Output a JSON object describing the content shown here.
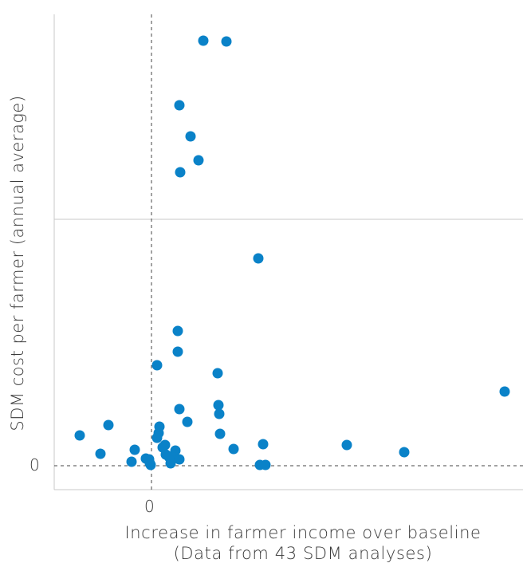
{
  "chart_data": {
    "type": "scatter",
    "title": "",
    "xlabel_lines": [
      "Increase in farmer income over baseline",
      "(Data from 43 SDM analyses)"
    ],
    "ylabel": "SDM cost per farmer (annual average)",
    "x_ticks": [
      {
        "value": 0,
        "label": "0"
      }
    ],
    "y_ticks": [
      {
        "value": 0,
        "label": "0"
      }
    ],
    "reference_lines": [
      "x = 0 (dashed)",
      "y = 0 (dashed)"
    ],
    "grid": "single horizontal gridline at upper half",
    "point_color": "#0a82c8",
    "points": [
      {
        "x": 65,
        "y": 533
      },
      {
        "x": 94,
        "y": 532
      },
      {
        "x": 35,
        "y": 452
      },
      {
        "x": 49,
        "y": 413
      },
      {
        "x": 59,
        "y": 383
      },
      {
        "x": 36,
        "y": 368
      },
      {
        "x": 134,
        "y": 260
      },
      {
        "x": 33,
        "y": 169
      },
      {
        "x": 33,
        "y": 143
      },
      {
        "x": 7,
        "y": 126
      },
      {
        "x": 83,
        "y": 116
      },
      {
        "x": 443,
        "y": 93
      },
      {
        "x": 35,
        "y": 71
      },
      {
        "x": 84,
        "y": 76
      },
      {
        "x": 85,
        "y": 65
      },
      {
        "x": -54,
        "y": 51
      },
      {
        "x": 10,
        "y": 49
      },
      {
        "x": 86,
        "y": 40
      },
      {
        "x": 9,
        "y": 41
      },
      {
        "x": -90,
        "y": 38
      },
      {
        "x": 7,
        "y": 35
      },
      {
        "x": 17,
        "y": 26
      },
      {
        "x": 140,
        "y": 27
      },
      {
        "x": 245,
        "y": 26
      },
      {
        "x": 14,
        "y": 23
      },
      {
        "x": 103,
        "y": 21
      },
      {
        "x": -21,
        "y": 20
      },
      {
        "x": 30,
        "y": 19
      },
      {
        "x": 317,
        "y": 17
      },
      {
        "x": -64,
        "y": 15
      },
      {
        "x": 18,
        "y": 14
      },
      {
        "x": 26,
        "y": 12
      },
      {
        "x": 22,
        "y": 11
      },
      {
        "x": 35,
        "y": 8
      },
      {
        "x": -7,
        "y": 9
      },
      {
        "x": -3,
        "y": 8
      },
      {
        "x": -25,
        "y": 5
      },
      {
        "x": -2,
        "y": 3
      },
      {
        "x": 24,
        "y": 3
      },
      {
        "x": -1,
        "y": 1
      },
      {
        "x": 136,
        "y": 1
      },
      {
        "x": 143,
        "y": 1
      },
      {
        "x": 45,
        "y": 55
      }
    ]
  }
}
